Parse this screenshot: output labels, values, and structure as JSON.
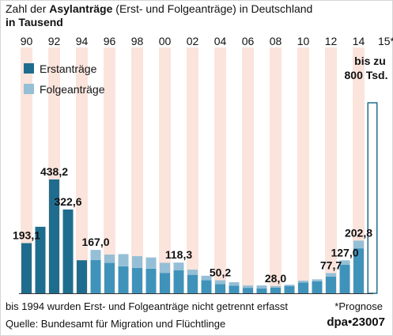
{
  "header": {
    "title_pre": "Zahl der ",
    "title_bold": "Asylanträge",
    "title_post": " (Erst- und Folgeanträge) in Deutschland",
    "unit": "in Tausend"
  },
  "footer": {
    "note": "bis 1994 wurden Erst- und Folgeanträge nicht getrennt erfasst",
    "forecast_note": "*Prognose",
    "source": "Quelle: Bundesamt für Migration und Flüchtlinge",
    "brand": "dpa•23007"
  },
  "colors": {
    "combined": "#1f6d8e",
    "erst": "#3f93bb",
    "folge": "#95bfd6",
    "stripe": "#fbe4dc",
    "forecast_outline": "#1f6d8e"
  },
  "chart_data": {
    "type": "bar",
    "stacked": true,
    "x_tick_labels": [
      "90",
      "92",
      "94",
      "96",
      "98",
      "00",
      "02",
      "04",
      "06",
      "08",
      "10",
      "12",
      "14",
      "15*"
    ],
    "categories": [
      "1990",
      "1991",
      "1992",
      "1993",
      "1994",
      "1995",
      "1996",
      "1997",
      "1998",
      "1999",
      "2000",
      "2001",
      "2002",
      "2003",
      "2004",
      "2005",
      "2006",
      "2007",
      "2008",
      "2009",
      "2010",
      "2011",
      "2012",
      "2013",
      "2014"
    ],
    "series": [
      {
        "name": "Erstanträge",
        "values": [
          193.1,
          256.1,
          438.2,
          322.6,
          127.2,
          128.0,
          117.0,
          104.0,
          98.0,
          95.0,
          78.6,
          88.3,
          71.1,
          50.6,
          35.6,
          28.9,
          21.0,
          19.2,
          22.1,
          27.6,
          41.3,
          45.7,
          64.5,
          109.6,
          173.1
        ]
      },
      {
        "name": "Folgeanträge",
        "values": [
          0,
          0,
          0,
          0,
          0,
          39.0,
          32.0,
          47.0,
          45.0,
          43.0,
          38.8,
          30.0,
          20.0,
          17.0,
          14.6,
          13.7,
          9.1,
          11.1,
          5.9,
          5.5,
          7.3,
          8.0,
          13.2,
          17.4,
          29.7
        ]
      }
    ],
    "undivided_until": "1994",
    "data_labels": [
      {
        "category": "1990",
        "text": "193,1"
      },
      {
        "category": "1992",
        "text": "438,2"
      },
      {
        "category": "1993",
        "text": "322,6"
      },
      {
        "category": "1995",
        "text": "167,0"
      },
      {
        "category": "2001",
        "text": "118,3"
      },
      {
        "category": "2004",
        "text": "50,2"
      },
      {
        "category": "2008",
        "text": "28,0"
      },
      {
        "category": "2012",
        "text": "77,7"
      },
      {
        "category": "2013",
        "text": "127,0"
      },
      {
        "category": "2014",
        "text": "202,8"
      }
    ],
    "forecast": {
      "category": "2015*",
      "value": 800,
      "label_line1": "bis zu",
      "label_line2": "800 Tsd."
    },
    "legend": [
      "Erstanträge",
      "Folgeanträge"
    ],
    "legend_position": "top-left",
    "ylim": [
      0,
      480
    ]
  }
}
